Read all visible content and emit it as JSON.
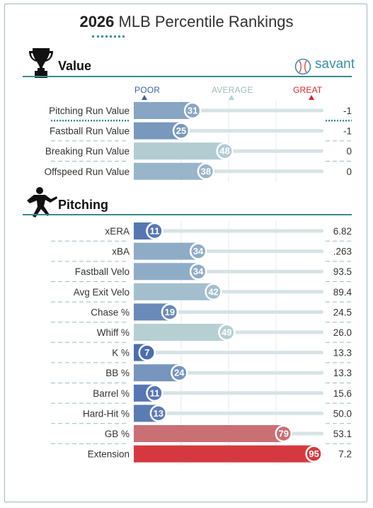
{
  "header": {
    "year": "2026",
    "title_rest": "MLB Percentile Rankings",
    "brand": "savant"
  },
  "scale": {
    "poor": "POOR",
    "average": "AVERAGE",
    "great": "GREAT"
  },
  "colors": {
    "poor": "#3b5ea8",
    "average": "#b7d1d4",
    "great": "#d8282e",
    "accent": "#3c8a8f"
  },
  "chart_data": {
    "type": "bar",
    "xlim": [
      0,
      100
    ],
    "sections": [
      {
        "name": "Value",
        "rows": [
          {
            "label": "Pitching Run Value",
            "percentile": 31,
            "stat": "-1"
          },
          {
            "label": "Fastball Run Value",
            "percentile": 25,
            "stat": "-1"
          },
          {
            "label": "Breaking Run Value",
            "percentile": 48,
            "stat": "0"
          },
          {
            "label": "Offspeed Run Value",
            "percentile": 38,
            "stat": "0"
          }
        ]
      },
      {
        "name": "Pitching",
        "rows": [
          {
            "label": "xERA",
            "percentile": 11,
            "stat": "6.82"
          },
          {
            "label": "xBA",
            "percentile": 34,
            "stat": ".263"
          },
          {
            "label": "Fastball Velo",
            "percentile": 34,
            "stat": "93.5"
          },
          {
            "label": "Avg Exit Velo",
            "percentile": 42,
            "stat": "89.4"
          },
          {
            "label": "Chase %",
            "percentile": 19,
            "stat": "24.5"
          },
          {
            "label": "Whiff %",
            "percentile": 49,
            "stat": "26.0"
          },
          {
            "label": "K %",
            "percentile": 7,
            "stat": "13.3"
          },
          {
            "label": "BB %",
            "percentile": 24,
            "stat": "13.3"
          },
          {
            "label": "Barrel %",
            "percentile": 11,
            "stat": "15.6"
          },
          {
            "label": "Hard-Hit %",
            "percentile": 13,
            "stat": "50.0"
          },
          {
            "label": "GB %",
            "percentile": 79,
            "stat": "53.1"
          },
          {
            "label": "Extension",
            "percentile": 95,
            "stat": "7.2"
          }
        ]
      }
    ]
  }
}
